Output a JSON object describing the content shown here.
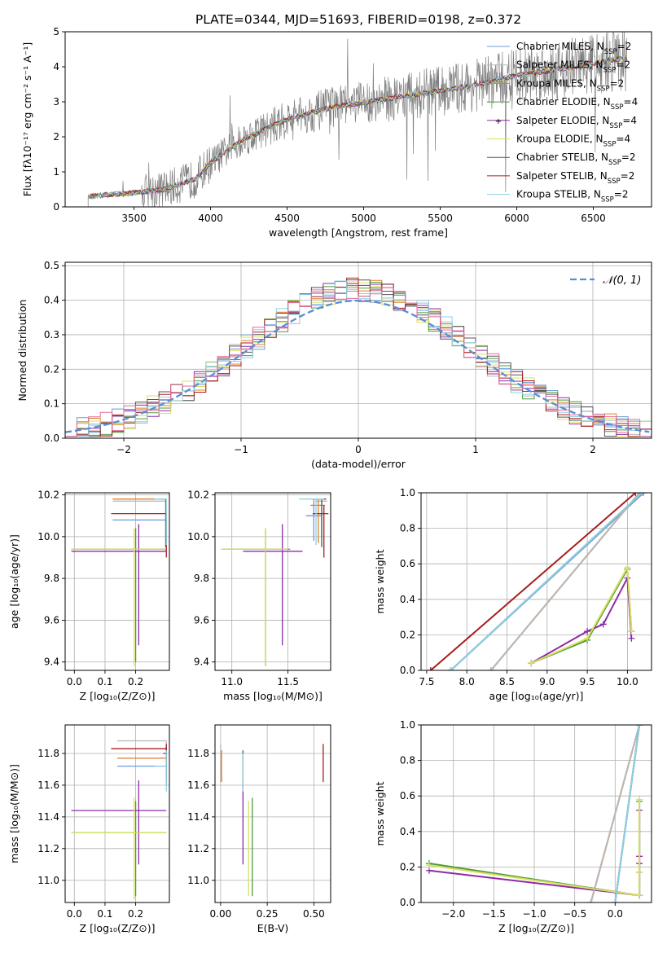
{
  "figure_title": "PLATE=0344, MJD=51693, FIBERID=0198, z=0.372",
  "palette": {
    "Chabrier MILES": "#6c9ad8",
    "Salpeter MILES": "#b8b8b8",
    "Kroupa MILES": "#e37c2a",
    "Chabrier ELODIE": "#4e9a3a",
    "Salpeter ELODIE": "#8e2ba8",
    "Kroupa ELODIE": "#d8e060",
    "Chabrier STELIB": "#555555",
    "Salpeter STELIB": "#a61e1e",
    "Kroupa STELIB": "#8ed0e2",
    "data": "#808080",
    "gaussian": "#5b8dd6",
    "pink": "#e56a9a"
  },
  "chart_data": [
    {
      "id": "spectrum",
      "type": "line",
      "title": "",
      "xlabel": "wavelength [Angstrom, rest frame]",
      "ylabel": "Flux [fλ10⁻¹⁷ erg cm⁻² s⁻¹ A⁻¹]",
      "xlim": [
        3050,
        6880
      ],
      "ylim": [
        0,
        5
      ],
      "xticks": [
        3500,
        4000,
        4500,
        5000,
        5500,
        6000,
        6500
      ],
      "yticks": [
        0,
        1,
        2,
        3,
        4,
        5
      ],
      "legend_position": "right",
      "legend": [
        {
          "label": "Chabrier MILES",
          "nssp": "2"
        },
        {
          "label": "Salpeter MILES",
          "nssp": "2"
        },
        {
          "label": "Kroupa MILES",
          "nssp": "2"
        },
        {
          "label": "Chabrier ELODIE",
          "nssp": "4"
        },
        {
          "label": "Salpeter ELODIE",
          "nssp": "4"
        },
        {
          "label": "Kroupa ELODIE",
          "nssp": "4"
        },
        {
          "label": "Chabrier STELIB",
          "nssp": "2"
        },
        {
          "label": "Salpeter STELIB",
          "nssp": "2"
        },
        {
          "label": "Kroupa STELIB",
          "nssp": "2"
        }
      ],
      "data_range": [
        3200,
        6720
      ],
      "continuum_points": [
        [
          3200,
          0.3
        ],
        [
          3500,
          0.4
        ],
        [
          3700,
          0.5
        ],
        [
          3900,
          0.8
        ],
        [
          4000,
          1.25
        ],
        [
          4200,
          1.9
        ],
        [
          4500,
          2.5
        ],
        [
          4800,
          2.85
        ],
        [
          5100,
          3.05
        ],
        [
          5400,
          3.25
        ],
        [
          5700,
          3.45
        ],
        [
          6000,
          3.75
        ],
        [
          6300,
          3.95
        ],
        [
          6500,
          4.1
        ],
        [
          6700,
          4.25
        ]
      ]
    },
    {
      "id": "residuals",
      "type": "line",
      "title": "",
      "xlabel": "(data-model)/error",
      "ylabel": "Normed distribution",
      "xlim": [
        -2.5,
        2.5
      ],
      "ylim": [
        0,
        0.51
      ],
      "xticks": [
        -2,
        -1,
        0,
        1,
        2
      ],
      "yticks": [
        0.0,
        0.1,
        0.2,
        0.3,
        0.4,
        0.5
      ],
      "grid": true,
      "legend_position": "top-right",
      "legend_label": "𝒩(0, 1)",
      "bin_width": 0.1
    },
    {
      "id": "age-Z",
      "type": "scatter",
      "xlabel": "Z [log₁₀(Z/Z⊙)]",
      "ylabel": "age  [log₁₀(age/yr)]",
      "xlim": [
        -0.03,
        0.31
      ],
      "ylim": [
        9.36,
        10.21
      ],
      "xticks": [
        0.0,
        0.1,
        0.2
      ],
      "yticks": [
        9.4,
        9.6,
        9.8,
        10.0,
        10.2
      ],
      "grid": true,
      "points": [
        {
          "series": "Chabrier MILES",
          "x": 0.19,
          "xlo": 0.125,
          "xhi": 0.3,
          "y": 10.08,
          "ylo": 10.08,
          "yhi": 10.08
        },
        {
          "series": "Salpeter MILES",
          "x": 0.2,
          "xlo": 0.125,
          "xhi": 0.3,
          "y": 10.17,
          "ylo": 10.17,
          "yhi": 10.17
        },
        {
          "series": "Kroupa MILES",
          "x": 0.25,
          "xlo": 0.125,
          "xhi": 0.3,
          "y": 10.18,
          "ylo": 10.18,
          "yhi": 10.18
        },
        {
          "series": "Chabrier ELODIE",
          "x": 0.2,
          "xlo": -0.01,
          "xhi": 0.3,
          "y": 9.94,
          "ylo": 9.4,
          "yhi": 10.04
        },
        {
          "series": "Salpeter ELODIE",
          "x": 0.21,
          "xlo": -0.01,
          "xhi": 0.3,
          "y": 9.93,
          "ylo": 9.48,
          "yhi": 10.06
        },
        {
          "series": "Kroupa ELODIE",
          "x": 0.195,
          "xlo": -0.01,
          "xhi": 0.3,
          "y": 9.94,
          "ylo": 9.38,
          "yhi": 10.04
        },
        {
          "series": "Chabrier STELIB",
          "x": 0.298,
          "xlo": 0.285,
          "xhi": 0.3,
          "y": 10.18,
          "ylo": 9.95,
          "yhi": 10.18
        },
        {
          "series": "Salpeter STELIB",
          "x": 0.3,
          "xlo": 0.12,
          "xhi": 0.3,
          "y": 10.11,
          "ylo": 9.9,
          "yhi": 10.11
        },
        {
          "series": "Kroupa STELIB",
          "x": 0.3,
          "xlo": 0.26,
          "xhi": 0.3,
          "y": 10.18,
          "ylo": 9.96,
          "yhi": 10.18
        }
      ]
    },
    {
      "id": "age-mass",
      "type": "scatter",
      "xlabel": "mass [log₁₀(M/M⊙)]",
      "ylabel": "",
      "xlim": [
        10.85,
        11.88
      ],
      "ylim": [
        9.36,
        10.21
      ],
      "xticks": [
        11.0,
        11.5
      ],
      "yticks": [
        9.4,
        9.6,
        9.8,
        10.0,
        10.2
      ],
      "grid": true,
      "points": [
        {
          "series": "Chabrier MILES",
          "x": 11.73,
          "xlo": 11.66,
          "xhi": 11.8,
          "y": 10.1,
          "ylo": 9.98,
          "yhi": 10.18
        },
        {
          "series": "Salpeter MILES",
          "x": 11.8,
          "xlo": 11.75,
          "xhi": 11.85,
          "y": 10.17,
          "ylo": 10.0,
          "yhi": 10.18
        },
        {
          "series": "Kroupa MILES",
          "x": 11.77,
          "xlo": 11.7,
          "xhi": 11.83,
          "y": 10.15,
          "ylo": 9.97,
          "yhi": 10.18
        },
        {
          "series": "Chabrier ELODIE",
          "x": 11.3,
          "xlo": 10.92,
          "xhi": 11.52,
          "y": 9.94,
          "ylo": 9.38,
          "yhi": 10.04
        },
        {
          "series": "Salpeter ELODIE",
          "x": 11.45,
          "xlo": 11.1,
          "xhi": 11.63,
          "y": 9.93,
          "ylo": 9.48,
          "yhi": 10.06
        },
        {
          "series": "Kroupa ELODIE",
          "x": 11.3,
          "xlo": 10.9,
          "xhi": 11.5,
          "y": 9.94,
          "ylo": 9.38,
          "yhi": 10.04
        },
        {
          "series": "Chabrier STELIB",
          "x": 11.8,
          "xlo": 11.72,
          "xhi": 11.84,
          "y": 10.18,
          "ylo": 9.95,
          "yhi": 10.18
        },
        {
          "series": "Salpeter STELIB",
          "x": 11.82,
          "xlo": 11.72,
          "xhi": 11.86,
          "y": 10.11,
          "ylo": 9.9,
          "yhi": 10.15
        },
        {
          "series": "Kroupa STELIB",
          "x": 11.75,
          "xlo": 11.6,
          "xhi": 11.82,
          "y": 10.18,
          "ylo": 9.96,
          "yhi": 10.18
        }
      ]
    },
    {
      "id": "mass-weight-age",
      "type": "line",
      "xlabel": "age  [log₁₀(age/yr)]",
      "ylabel": "mass weight",
      "xlim": [
        7.43,
        10.3
      ],
      "ylim": [
        0,
        1
      ],
      "xticks": [
        7.5,
        8.0,
        8.5,
        9.0,
        9.5,
        10.0
      ],
      "yticks": [
        0.0,
        0.2,
        0.4,
        0.6,
        0.8,
        1.0
      ],
      "grid": true,
      "series": [
        {
          "name": "Chabrier MILES",
          "x": [
            7.8,
            10.2
          ],
          "y": [
            0.0,
            1.0
          ]
        },
        {
          "name": "Kroupa MILES",
          "x": [
            8.3,
            10.15
          ],
          "y": [
            0.0,
            1.0
          ]
        },
        {
          "name": "Salpeter MILES",
          "x": [
            8.3,
            10.15
          ],
          "y": [
            0.0,
            1.0
          ]
        },
        {
          "name": "Chabrier ELODIE",
          "x": [
            8.8,
            9.5,
            10.0,
            10.05
          ],
          "y": [
            0.04,
            0.17,
            0.57,
            0.22
          ]
        },
        {
          "name": "Salpeter ELODIE",
          "x": [
            8.8,
            9.5,
            9.7,
            10.0,
            10.05
          ],
          "y": [
            0.04,
            0.22,
            0.26,
            0.52,
            0.18
          ]
        },
        {
          "name": "Kroupa ELODIE",
          "x": [
            8.8,
            9.5,
            10.0,
            10.05
          ],
          "y": [
            0.04,
            0.18,
            0.58,
            0.22
          ]
        },
        {
          "name": "Salpeter STELIB",
          "x": [
            7.55,
            10.1
          ],
          "y": [
            0.0,
            1.0
          ]
        },
        {
          "name": "Chabrier STELIB",
          "x": [
            7.8,
            10.18
          ],
          "y": [
            0.0,
            1.0
          ]
        },
        {
          "name": "Kroupa STELIB",
          "x": [
            7.8,
            10.18
          ],
          "y": [
            0.0,
            1.0
          ]
        }
      ]
    },
    {
      "id": "mass-Z",
      "type": "scatter",
      "xlabel": "Z [log₁₀(Z/Z⊙)]",
      "ylabel": "mass [log₁₀(M/M⊙)]",
      "xlim": [
        -0.03,
        0.31
      ],
      "ylim": [
        10.86,
        11.98
      ],
      "xticks": [
        0.0,
        0.1,
        0.2
      ],
      "yticks": [
        11.0,
        11.2,
        11.4,
        11.6,
        11.8
      ],
      "grid": true,
      "points": [
        {
          "series": "Chabrier MILES",
          "x": 0.3,
          "xlo": 0.14,
          "xhi": 0.3,
          "y": 11.72,
          "ylo": 11.6,
          "yhi": 11.8
        },
        {
          "series": "Salpeter MILES",
          "x": 0.3,
          "xlo": 0.14,
          "xhi": 0.3,
          "y": 11.88,
          "ylo": 11.82,
          "yhi": 11.88
        },
        {
          "series": "Kroupa MILES",
          "x": 0.3,
          "xlo": 0.14,
          "xhi": 0.3,
          "y": 11.77,
          "ylo": 11.65,
          "yhi": 11.82
        },
        {
          "series": "Chabrier ELODIE",
          "x": 0.2,
          "xlo": -0.01,
          "xhi": 0.3,
          "y": 11.3,
          "ylo": 10.9,
          "yhi": 11.5
        },
        {
          "series": "Salpeter ELODIE",
          "x": 0.21,
          "xlo": -0.01,
          "xhi": 0.3,
          "y": 11.44,
          "ylo": 11.1,
          "yhi": 11.63
        },
        {
          "series": "Kroupa ELODIE",
          "x": 0.195,
          "xlo": -0.01,
          "xhi": 0.3,
          "y": 11.3,
          "ylo": 10.88,
          "yhi": 11.52
        },
        {
          "series": "Chabrier STELIB",
          "x": 0.3,
          "xlo": 0.29,
          "xhi": 0.3,
          "y": 11.8,
          "ylo": 11.62,
          "yhi": 11.84
        },
        {
          "series": "Salpeter STELIB",
          "x": 0.3,
          "xlo": 0.12,
          "xhi": 0.3,
          "y": 11.83,
          "ylo": 11.72,
          "yhi": 11.86
        },
        {
          "series": "Kroupa STELIB",
          "x": 0.3,
          "xlo": 0.26,
          "xhi": 0.3,
          "y": 11.72,
          "ylo": 11.56,
          "yhi": 11.82
        }
      ]
    },
    {
      "id": "mass-EBV",
      "type": "scatter",
      "xlabel": "E(B-V)",
      "ylabel": "",
      "xlim": [
        -0.03,
        0.59
      ],
      "ylim": [
        10.86,
        11.98
      ],
      "xticks": [
        0.0,
        0.25,
        0.5
      ],
      "yticks": [
        11.0,
        11.2,
        11.4,
        11.6,
        11.8
      ],
      "grid": true,
      "points": [
        {
          "series": "Salpeter MILES",
          "x": 0.0,
          "xlo": 0.0,
          "xhi": 0.0,
          "y": 11.8,
          "ylo": 11.62,
          "yhi": 11.86
        },
        {
          "series": "Kroupa MILES",
          "x": 0.005,
          "xlo": 0.005,
          "xhi": 0.005,
          "y": 11.75,
          "ylo": 11.62,
          "yhi": 11.82
        },
        {
          "series": "Chabrier ELODIE",
          "x": 0.17,
          "xlo": 0.17,
          "xhi": 0.17,
          "y": 11.3,
          "ylo": 10.9,
          "yhi": 11.52
        },
        {
          "series": "Salpeter ELODIE",
          "x": 0.12,
          "xlo": 0.12,
          "xhi": 0.12,
          "y": 11.44,
          "ylo": 11.1,
          "yhi": 11.63
        },
        {
          "series": "Kroupa ELODIE",
          "x": 0.15,
          "xlo": 0.15,
          "xhi": 0.15,
          "y": 11.3,
          "ylo": 10.9,
          "yhi": 11.5
        },
        {
          "series": "Chabrier STELIB",
          "x": 0.12,
          "xlo": 0.12,
          "xhi": 0.12,
          "y": 11.78,
          "ylo": 11.58,
          "yhi": 11.82
        },
        {
          "series": "Salpeter STELIB",
          "x": 0.55,
          "xlo": 0.55,
          "xhi": 0.55,
          "y": 11.75,
          "ylo": 11.62,
          "yhi": 11.86
        },
        {
          "series": "Kroupa STELIB",
          "x": 0.12,
          "xlo": 0.12,
          "xhi": 0.12,
          "y": 11.72,
          "ylo": 11.56,
          "yhi": 11.8
        }
      ]
    },
    {
      "id": "mass-weight-Z",
      "type": "line",
      "xlabel": "Z [log₁₀(Z/Z⊙)]",
      "ylabel": "mass weight",
      "xlim": [
        -2.4,
        0.45
      ],
      "ylim": [
        0,
        1
      ],
      "xticks": [
        -2.0,
        -1.5,
        -1.0,
        -0.5,
        0.0
      ],
      "yticks": [
        0.0,
        0.2,
        0.4,
        0.6,
        0.8,
        1.0
      ],
      "grid": true,
      "series": [
        {
          "name": "Chabrier ELODIE",
          "x": [
            -2.3,
            0.3,
            0.3,
            0.3
          ],
          "y": [
            0.22,
            0.04,
            0.57,
            0.17
          ]
        },
        {
          "name": "Salpeter ELODIE",
          "x": [
            -2.3,
            0.3,
            0.3,
            0.3,
            0.3
          ],
          "y": [
            0.18,
            0.04,
            0.52,
            0.26,
            0.22
          ]
        },
        {
          "name": "Kroupa ELODIE",
          "x": [
            -2.3,
            0.3,
            0.3,
            0.3
          ],
          "y": [
            0.21,
            0.04,
            0.58,
            0.17
          ]
        },
        {
          "name": "Kroupa MILES",
          "x": [
            -0.3,
            0.3
          ],
          "y": [
            0.0,
            1.0
          ]
        },
        {
          "name": "Salpeter MILES",
          "x": [
            -0.3,
            0.3
          ],
          "y": [
            0.0,
            1.0
          ]
        },
        {
          "name": "Chabrier MILES",
          "x": [
            0.0,
            0.3
          ],
          "y": [
            0.0,
            1.0
          ]
        },
        {
          "name": "Chabrier STELIB",
          "x": [
            0.0,
            0.3
          ],
          "y": [
            0.0,
            1.0
          ]
        },
        {
          "name": "Kroupa STELIB",
          "x": [
            0.0,
            0.3
          ],
          "y": [
            0.0,
            1.0
          ]
        }
      ]
    }
  ]
}
